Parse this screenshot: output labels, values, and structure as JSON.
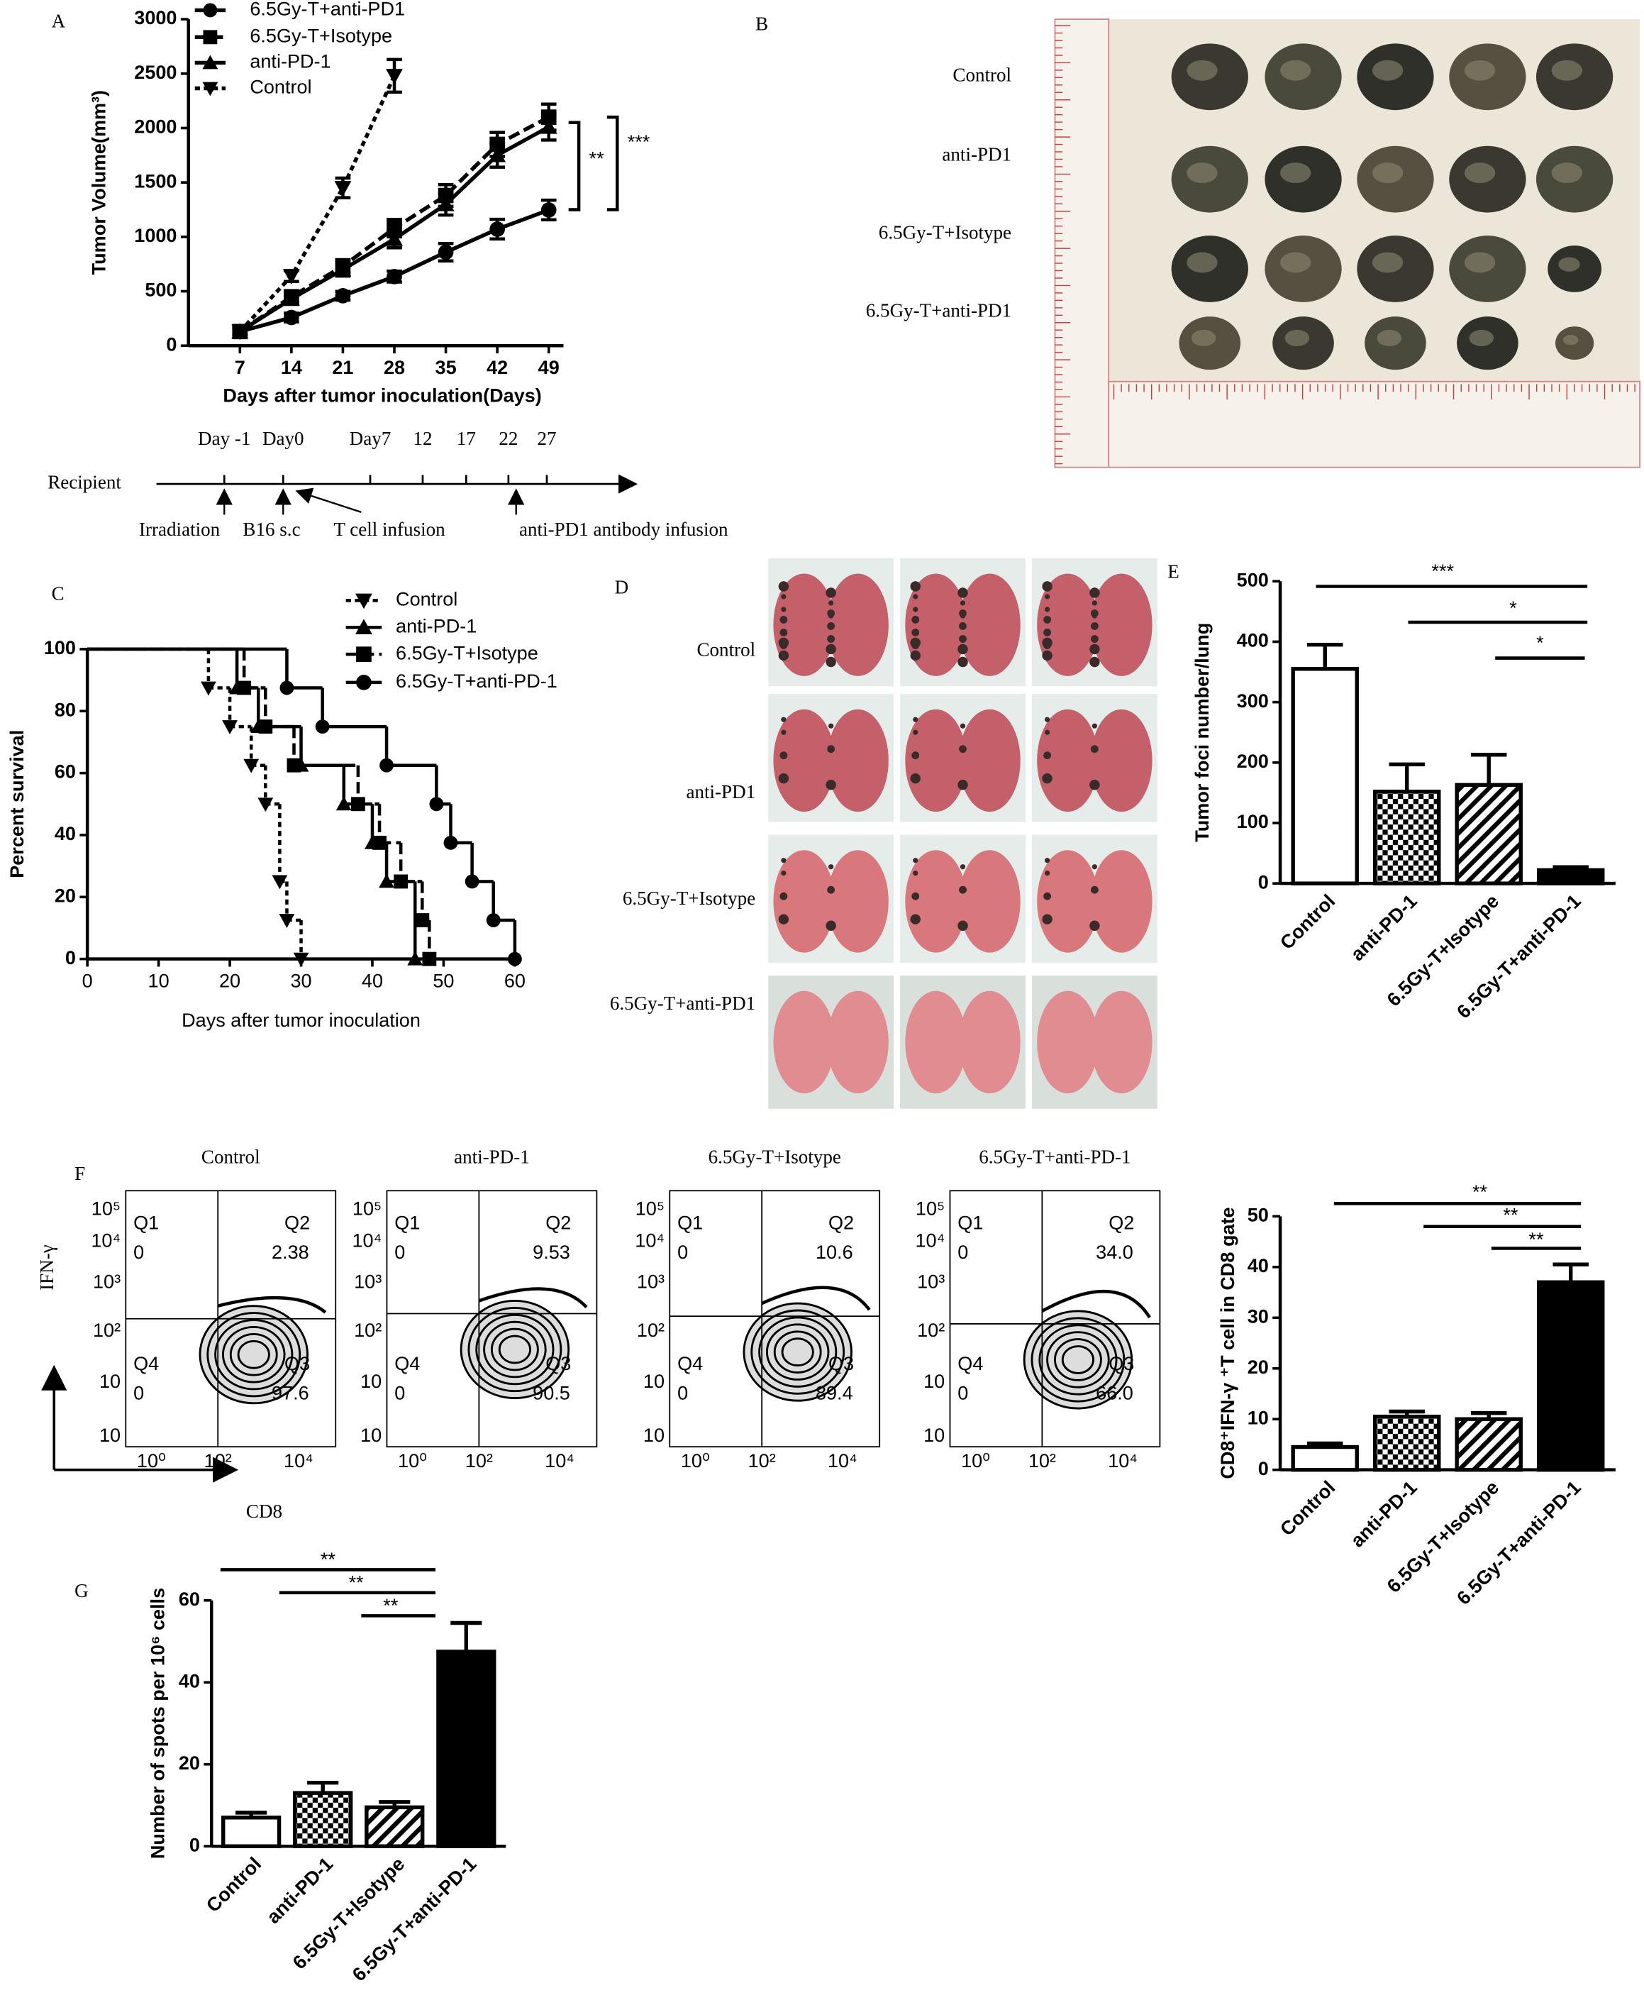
{
  "panel_labels": [
    "A",
    "B",
    "C",
    "D",
    "E",
    "F",
    "G"
  ],
  "chart_data": [
    {
      "type": "line",
      "ylabel": "Tumor Volume(mm³)",
      "xlabel": "Days after tumor inoculation(Days)",
      "x": [
        7,
        14,
        21,
        28,
        35,
        42,
        49
      ],
      "xlim": [
        0,
        51
      ],
      "xticks": [
        7,
        14,
        21,
        28,
        35,
        42,
        49
      ],
      "ylim": [
        0,
        3000
      ],
      "yticks": [
        0,
        500,
        1000,
        1500,
        2000,
        2500,
        3000
      ],
      "series": [
        {
          "name": "6.5Gy-T+anti-PD1",
          "color": "#000000",
          "marker": "circle",
          "linestyle": "solid",
          "values": [
            130,
            259,
            459,
            635,
            859,
            1071,
            1247
          ],
          "errors": [
            30,
            40,
            40,
            50,
            80,
            90,
            90
          ]
        },
        {
          "name": "6.5Gy-T+Isotype",
          "color": "#000000",
          "marker": "square",
          "linestyle": "dashed",
          "values": [
            130,
            450,
            730,
            1080,
            1380,
            1850,
            2100
          ],
          "errors": [
            30,
            50,
            60,
            80,
            100,
            110,
            120
          ]
        },
        {
          "name": "anti-PD-1",
          "color": "#000000",
          "marker": "triangle",
          "linestyle": "solid",
          "values": [
            130,
            430,
            700,
            980,
            1300,
            1750,
            2010
          ],
          "errors": [
            30,
            50,
            60,
            80,
            100,
            110,
            120
          ]
        },
        {
          "name": "Control",
          "color": "#000000",
          "marker": "triangle-down",
          "linestyle": "dotted",
          "values": [
            130,
            640,
            1450,
            2480,
            null,
            null,
            null
          ],
          "errors": [
            30,
            50,
            90,
            150,
            null,
            null,
            null
          ]
        }
      ],
      "annotations": [
        "**",
        "***"
      ]
    },
    {
      "type": "step",
      "ylabel": "Percent survival",
      "xlabel": "Days after tumor inoculation",
      "xlim": [
        0,
        60
      ],
      "xticks": [
        0,
        10,
        20,
        30,
        40,
        50,
        60
      ],
      "ylim": [
        0,
        100
      ],
      "yticks": [
        0,
        20,
        40,
        60,
        80,
        100
      ],
      "series": [
        {
          "name": "Control",
          "color": "#000000",
          "marker": "triangle-down",
          "linestyle": "dotted",
          "x": [
            0,
            17,
            20,
            23,
            25,
            27,
            28,
            30
          ],
          "values": [
            100,
            87.5,
            75,
            62.5,
            50,
            25,
            12.5,
            0
          ]
        },
        {
          "name": "anti-PD-1",
          "color": "#000000",
          "marker": "triangle",
          "linestyle": "solid",
          "x": [
            0,
            21,
            24,
            30,
            36,
            40,
            42,
            46
          ],
          "values": [
            100,
            87.5,
            75,
            62.5,
            50,
            37.5,
            25,
            0
          ]
        },
        {
          "name": "6.5Gy-T+Isotype",
          "color": "#000000",
          "marker": "square",
          "linestyle": "dashed",
          "x": [
            0,
            22,
            25,
            29,
            38,
            41,
            44,
            47,
            48
          ],
          "values": [
            100,
            87.5,
            75,
            62.5,
            50,
            37.5,
            25,
            12.5,
            0
          ]
        },
        {
          "name": "6.5Gy-T+anti-PD-1",
          "color": "#000000",
          "marker": "circle",
          "linestyle": "solid",
          "x": [
            0,
            28,
            33,
            42,
            49,
            51,
            54,
            57,
            60
          ],
          "values": [
            100,
            87.5,
            75,
            62.5,
            50,
            37.5,
            25,
            12.5,
            0
          ]
        }
      ]
    },
    {
      "type": "bar",
      "ylabel": "Tumor foci number/lung",
      "categories": [
        "Control",
        "anti-PD-1",
        "6.5Gy-T+Isotype",
        "6.5Gy-T+anti-PD-1"
      ],
      "values": [
        355,
        152,
        163,
        22
      ],
      "errors": [
        40,
        45,
        50,
        5
      ],
      "patterns": [
        "none",
        "checker",
        "hatch",
        "solid"
      ],
      "ylim": [
        0,
        500
      ],
      "yticks": [
        0,
        100,
        200,
        300,
        400,
        500
      ],
      "annotations": [
        "***",
        "*",
        "*"
      ]
    },
    {
      "type": "bar",
      "ylabel": "CD8⁺IFN-γ ⁺T cell in CD8 gate",
      "categories": [
        "Control",
        "anti-PD-1",
        "6.5Gy-T+Isotype",
        "6.5Gy-T+anti-PD-1"
      ],
      "values": [
        4.5,
        10.5,
        10,
        37
      ],
      "errors": [
        0.7,
        1,
        1.2,
        3.5
      ],
      "patterns": [
        "none",
        "checker",
        "hatch",
        "solid"
      ],
      "ylim": [
        0,
        50
      ],
      "yticks": [
        0,
        10,
        20,
        30,
        40,
        50
      ],
      "annotations": [
        "**",
        "**",
        "**"
      ]
    },
    {
      "type": "bar",
      "ylabel": "Number of spots per 10⁶ cells",
      "categories": [
        "Control",
        "anti-PD-1",
        "6.5Gy-T+Isotype",
        "6.5Gy-T+anti-PD-1"
      ],
      "values": [
        7,
        13,
        9.5,
        47.5
      ],
      "errors": [
        1.2,
        2.5,
        1.3,
        7
      ],
      "patterns": [
        "none",
        "checker",
        "hatch",
        "solid"
      ],
      "ylim": [
        0,
        60
      ],
      "yticks": [
        0,
        20,
        40,
        60
      ],
      "annotations": [
        "**",
        "**",
        "**"
      ]
    }
  ],
  "timeline": {
    "recipient": "Recipient",
    "days": [
      "Day -1",
      "Day0",
      "Day7",
      "12",
      "17",
      "22",
      "27"
    ],
    "events": [
      "Irradiation",
      "B16 s.c",
      "T cell infusion",
      "anti-PD1 antibody infusion"
    ]
  },
  "photo_b": {
    "labels": [
      "Control",
      "anti-PD1",
      "6.5Gy-T+Isotype",
      "6.5Gy-T+anti-PD1"
    ]
  },
  "photo_d": {
    "labels": [
      "Control",
      "anti-PD1",
      "6.5Gy-T+Isotype",
      "6.5Gy-T+anti-PD1"
    ]
  },
  "flow": {
    "ylabel": "IFN-γ",
    "xlabel": "CD8",
    "yticks": [
      "10⁵",
      "10⁴",
      "10³",
      "10²",
      "10",
      "10"
    ],
    "xticks": [
      "10⁰",
      "10²",
      "10⁴"
    ],
    "quadrants": [
      "Q1",
      "Q2",
      "Q3",
      "Q4"
    ],
    "panels": [
      {
        "title": "Control",
        "q1": "0",
        "q2": "2.38",
        "q3": "97.6",
        "q4": "0"
      },
      {
        "title": "anti-PD-1",
        "q1": "0",
        "q2": "9.53",
        "q3": "90.5",
        "q4": "0"
      },
      {
        "title": "6.5Gy-T+Isotype",
        "q1": "0",
        "q2": "10.6",
        "q3": "89.4",
        "q4": "0"
      },
      {
        "title": "6.5Gy-T+anti-PD-1",
        "q1": "0",
        "q2": "34.0",
        "q3": "66.0",
        "q4": "0"
      }
    ]
  }
}
